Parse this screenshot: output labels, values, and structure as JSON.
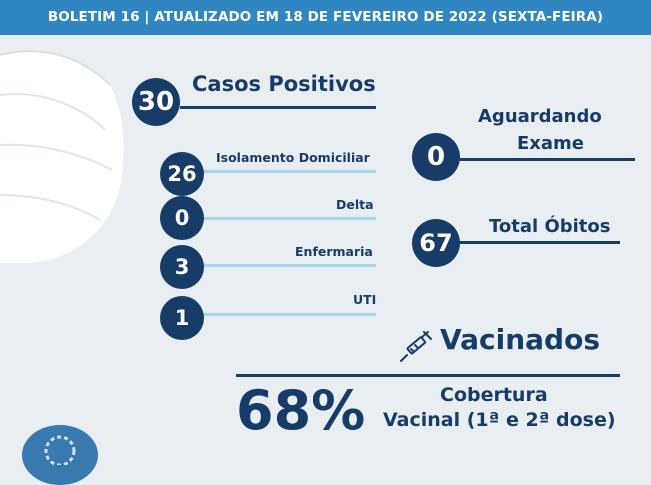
{
  "header": {
    "prefix": "BOLETIM 16 | ATUALIZADO EM ",
    "date": "18 DE FEVEREIRO DE 2022",
    "suffix": " (SEXTA-FEIRA)"
  },
  "positivos": {
    "value": "30",
    "label": "Casos Positivos"
  },
  "breakdown": [
    {
      "value": "26",
      "label": "Isolamento Domiciliar"
    },
    {
      "value": "0",
      "label": "Delta"
    },
    {
      "value": "3",
      "label": "Enfermaria"
    },
    {
      "value": "1",
      "label": "UTI"
    }
  ],
  "aguardando": {
    "value": "0",
    "line1": "Aguardando",
    "line2": "Exame"
  },
  "obitos": {
    "value": "67",
    "label": "Total Óbitos"
  },
  "vacinados": {
    "title": "Vacinados",
    "percent": "68%",
    "cobertura1": "Cobertura",
    "cobertura2": "Vacinal (1ª e 2ª dose)",
    "icon": "syringe-icon"
  },
  "colors": {
    "navy": "#183c68",
    "header": "#2f86c0",
    "light_line": "#a8d5ea",
    "background": "#e9eef3"
  }
}
